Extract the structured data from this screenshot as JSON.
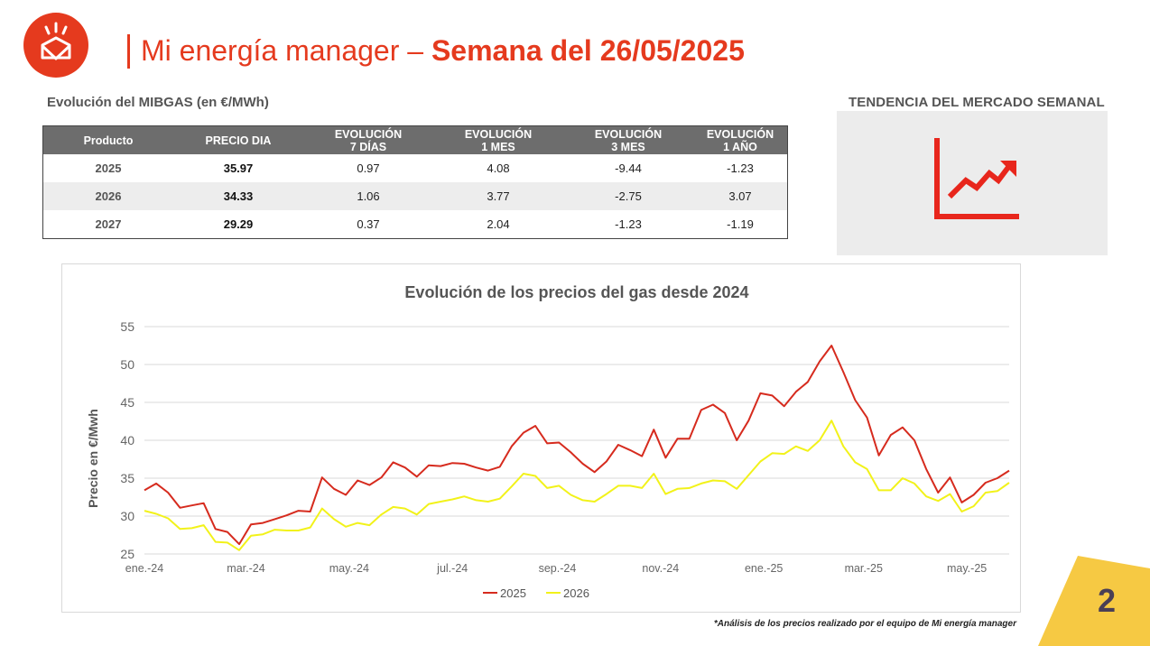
{
  "header": {
    "brand": "Mi energía manager",
    "separator": "–",
    "week_label": "Semana del 26/05/2025",
    "accent_color": "#e53a1e"
  },
  "logo": {
    "icon": "envelope-sun-logo"
  },
  "mibgas": {
    "title": "Evolución del MIBGAS (en €/MWh)",
    "columns": [
      "Producto",
      "PRECIO DIA",
      "EVOLUCIÓN\n7 DÍAS",
      "EVOLUCIÓN\n1 MES",
      "EVOLUCIÓN\n3 MES",
      "EVOLUCIÓN\n1 AÑO"
    ],
    "rows": [
      [
        "2025",
        "35.97",
        "0.97",
        "4.08",
        "-9.44",
        "-1.23"
      ],
      [
        "2026",
        "34.33",
        "1.06",
        "3.77",
        "-2.75",
        "3.07"
      ],
      [
        "2027",
        "29.29",
        "0.37",
        "2.04",
        "-1.23",
        "-1.19"
      ]
    ]
  },
  "trend": {
    "title": "TENDENCIA DEL MERCADO SEMANAL",
    "icon": "trend-up-arrow-icon",
    "color": "#e8261c"
  },
  "chart_data": {
    "type": "line",
    "title": "Evolución de los precios del gas desde 2024",
    "xlabel": "",
    "ylabel": "Precio en €/Mwh",
    "ylim": [
      25,
      55
    ],
    "yticks": [
      25,
      30,
      35,
      40,
      45,
      50,
      55
    ],
    "x_tick_labels": [
      "ene.-24",
      "mar.-24",
      "may.-24",
      "jul.-24",
      "sep.-24",
      "nov.-24",
      "ene.-25",
      "mar.-25",
      "may.-25"
    ],
    "x_start": "2024-01-01",
    "x_step_days": 7,
    "grid": "horizontal",
    "legend": "bottom-center",
    "series": [
      {
        "name": "2025",
        "color": "#d62b1e",
        "values": [
          33.4,
          34.3,
          33.1,
          31.1,
          31.4,
          31.7,
          28.3,
          27.9,
          26.3,
          28.9,
          29.1,
          29.6,
          30.1,
          30.7,
          30.6,
          35.1,
          33.6,
          32.8,
          34.7,
          34.1,
          35.1,
          37.1,
          36.4,
          35.2,
          36.7,
          36.6,
          37.0,
          36.9,
          36.4,
          36.0,
          36.5,
          39.2,
          41.0,
          41.9,
          39.6,
          39.7,
          38.4,
          36.9,
          35.8,
          37.2,
          39.4,
          38.7,
          37.9,
          41.4,
          37.7,
          40.2,
          40.2,
          44.0,
          44.7,
          43.6,
          40.0,
          42.6,
          46.2,
          45.9,
          44.5,
          46.4,
          47.7,
          50.4,
          52.5,
          49.0,
          45.3,
          43.0,
          38.0,
          40.7,
          41.7,
          40.0,
          36.2,
          33.1,
          35.1,
          31.8,
          32.8,
          34.4,
          35.0,
          36.0
        ]
      },
      {
        "name": "2026",
        "color": "#f2f21a",
        "values": [
          30.7,
          30.3,
          29.7,
          28.3,
          28.4,
          28.8,
          26.6,
          26.5,
          25.5,
          27.4,
          27.6,
          28.2,
          28.1,
          28.1,
          28.5,
          31.0,
          29.6,
          28.6,
          29.1,
          28.8,
          30.2,
          31.2,
          31.0,
          30.2,
          31.6,
          31.9,
          32.2,
          32.6,
          32.1,
          31.9,
          32.3,
          33.9,
          35.6,
          35.3,
          33.7,
          34.0,
          32.8,
          32.1,
          31.9,
          32.9,
          34.0,
          34.0,
          33.7,
          35.6,
          32.9,
          33.6,
          33.7,
          34.3,
          34.7,
          34.6,
          33.6,
          35.4,
          37.2,
          38.3,
          38.2,
          39.2,
          38.6,
          40.0,
          42.6,
          39.2,
          37.1,
          36.2,
          33.4,
          33.4,
          35.0,
          34.3,
          32.6,
          32.0,
          32.9,
          30.6,
          31.3,
          33.1,
          33.3,
          34.4
        ]
      }
    ]
  },
  "footnote": "*Análisis de los precios realizado por el equipo de Mi energía manager",
  "page_number": "2"
}
